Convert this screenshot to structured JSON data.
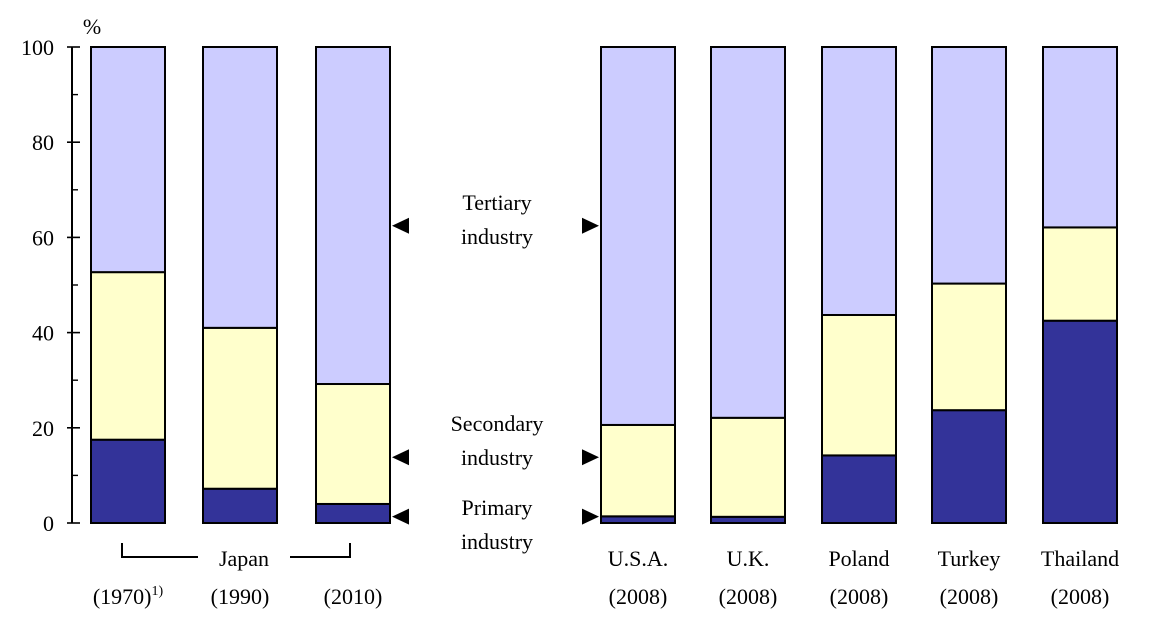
{
  "chart_data": {
    "type": "bar",
    "stacked": true,
    "y_unit": "%",
    "ylim": [
      0,
      100
    ],
    "y_ticks": [
      0,
      20,
      40,
      60,
      80,
      100
    ],
    "categories": [
      {
        "country": "Japan",
        "year": "(1970)",
        "footnote": "1)"
      },
      {
        "country": "Japan",
        "year": "(1990)",
        "footnote": ""
      },
      {
        "country": "Japan",
        "year": "(2010)",
        "footnote": ""
      },
      {
        "country": "U.S.A.",
        "year": "(2008)",
        "footnote": ""
      },
      {
        "country": "U.K.",
        "year": "(2008)",
        "footnote": ""
      },
      {
        "country": "Poland",
        "year": "(2008)",
        "footnote": ""
      },
      {
        "country": "Turkey",
        "year": "(2008)",
        "footnote": ""
      },
      {
        "country": "Thailand",
        "year": "(2008)",
        "footnote": ""
      }
    ],
    "japan_group_label": "Japan",
    "series": [
      {
        "name": "Primary industry",
        "lines": [
          "Primary",
          "industry"
        ],
        "color": "#333399",
        "values": [
          17.5,
          7.2,
          4.0,
          1.4,
          1.3,
          14.2,
          23.7,
          42.5
        ]
      },
      {
        "name": "Secondary industry",
        "lines": [
          "Secondary",
          "industry"
        ],
        "color": "#FFFFCC",
        "values": [
          35.2,
          33.8,
          25.2,
          19.2,
          20.8,
          29.5,
          26.6,
          19.6
        ]
      },
      {
        "name": "Tertiary industry",
        "lines": [
          "Tertiary",
          "industry"
        ],
        "color": "#CCCCFF",
        "values": [
          47.3,
          59.0,
          70.8,
          79.4,
          77.9,
          56.3,
          49.7,
          37.9
        ]
      }
    ]
  }
}
